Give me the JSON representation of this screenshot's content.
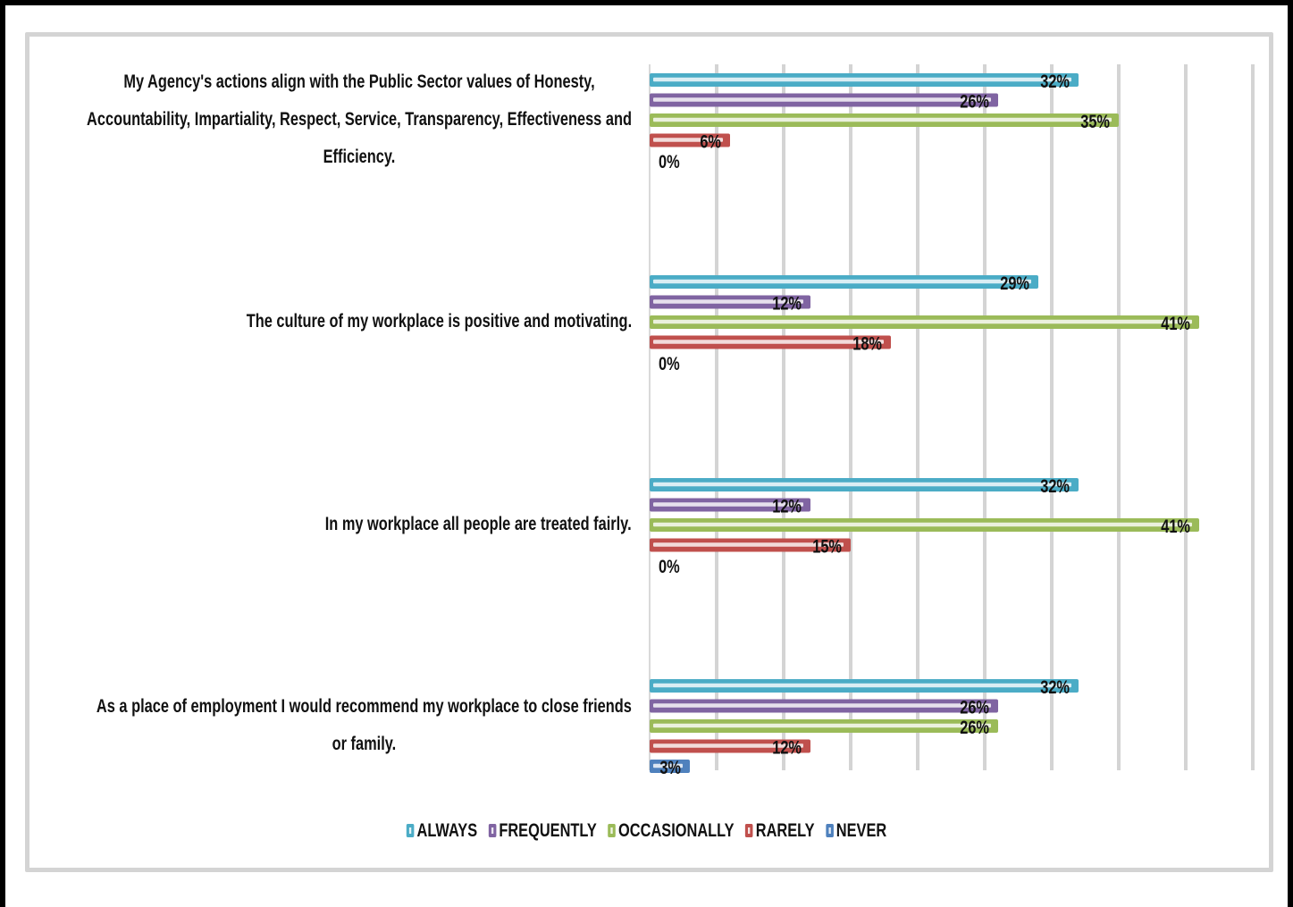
{
  "chart_data": {
    "type": "bar",
    "orientation": "horizontal",
    "categories": [
      "My Agency's actions align with the Public Sector values of Honesty, Accountability, Impartiality, Respect, Service, Transparency, Effectiveness and Efficiency.",
      "The culture of my workplace is positive and motivating.",
      "In my workplace all people are treated fairly.",
      "As a place of employment I would recommend my workplace to close friends or family."
    ],
    "category_lines": [
      [
        "My Agency's actions align with the Public Sector values of Honesty,",
        "Accountability, Impartiality, Respect, Service, Transparency, Effectiveness and",
        "Efficiency."
      ],
      [
        "The culture of my workplace is positive and motivating."
      ],
      [
        "In my workplace all people are treated fairly."
      ],
      [
        "As a place of employment I would recommend my workplace to close friends",
        "or family."
      ]
    ],
    "series": [
      {
        "name": "ALWAYS",
        "color": "#4bacc6",
        "values": [
          32,
          29,
          32,
          32
        ],
        "labels": [
          "32%",
          "29%",
          "32%",
          "32%"
        ]
      },
      {
        "name": "FREQUENTLY",
        "color": "#8064a2",
        "values": [
          26,
          12,
          12,
          26
        ],
        "labels": [
          "26%",
          "12%",
          "12%",
          "26%"
        ]
      },
      {
        "name": "OCCASIONALLY",
        "color": "#9bbb59",
        "values": [
          35,
          41,
          41,
          26
        ],
        "labels": [
          "35%",
          "41%",
          "41%",
          "26%"
        ]
      },
      {
        "name": "RARELY",
        "color": "#c0504d",
        "values": [
          6,
          18,
          15,
          12
        ],
        "labels": [
          "6%",
          "18%",
          "15%",
          "12%"
        ]
      },
      {
        "name": "NEVER",
        "color": "#4f81bd",
        "values": [
          0,
          0,
          0,
          3
        ],
        "labels": [
          "0%",
          "0%",
          "0%",
          "3%"
        ]
      }
    ],
    "xlim": [
      0,
      45
    ],
    "grid": true,
    "legend_position": "bottom",
    "title": "",
    "xlabel": "",
    "ylabel": ""
  }
}
